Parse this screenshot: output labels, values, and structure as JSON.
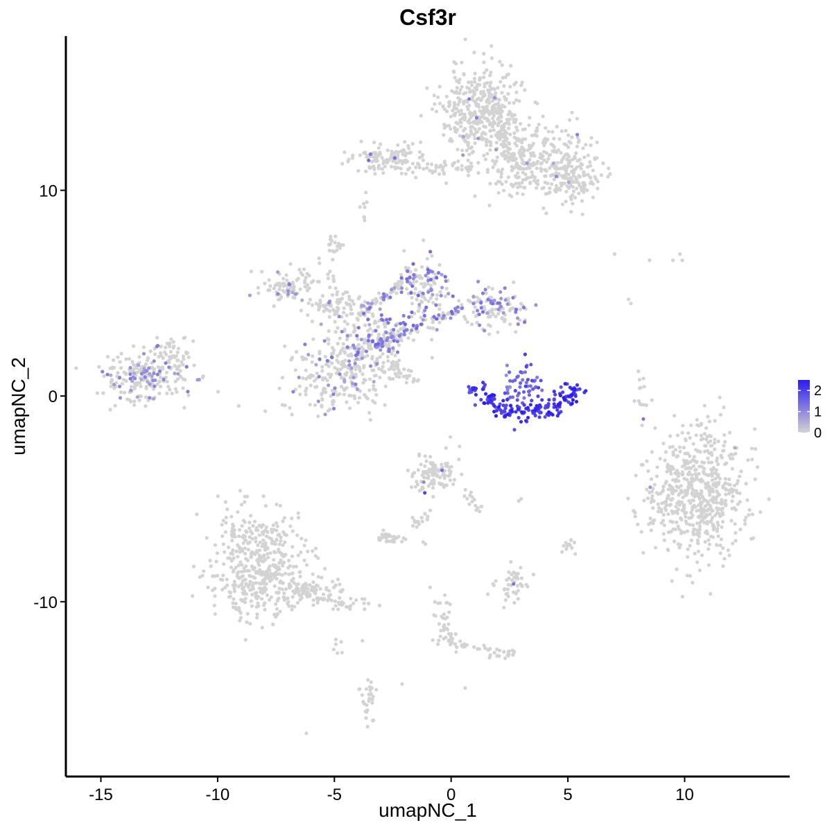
{
  "chart_data": {
    "type": "scatter",
    "title": "Csf3r",
    "xlabel": "umapNC_1",
    "ylabel": "umapNC_2",
    "xlim": [
      -16.5,
      14.5
    ],
    "ylim": [
      -18.5,
      17.5
    ],
    "xticks": [
      -15,
      -10,
      -5,
      0,
      5,
      10
    ],
    "xtick_labels": [
      "-15",
      "-10",
      "-5",
      "0",
      "5",
      "10"
    ],
    "yticks": [
      -10,
      0,
      10
    ],
    "ytick_labels": [
      "-10",
      "0",
      "10"
    ],
    "grid": false,
    "legend_position": "right",
    "color_scale": {
      "low": "#d3d3d3",
      "high": "#2b1bf0",
      "range": [
        0,
        2.5
      ],
      "ticks": [
        0,
        1,
        2
      ],
      "tick_labels": [
        "0",
        "1",
        "2"
      ]
    },
    "clusters": [
      {
        "cx": 1.4,
        "cy": 13.8,
        "sx": 0.9,
        "sy": 1.1,
        "n": 420,
        "expr_frac": 0.01,
        "expr": 0.9
      },
      {
        "cx": 3.5,
        "cy": 11.5,
        "sx": 1.2,
        "sy": 0.9,
        "n": 260,
        "expr_frac": 0.01,
        "expr": 0.8
      },
      {
        "cx": 5.2,
        "cy": 10.6,
        "sx": 0.6,
        "sy": 0.7,
        "n": 120,
        "expr_frac": 0.01,
        "expr": 0.8
      },
      {
        "cx": -2.8,
        "cy": 11.6,
        "sx": 0.8,
        "sy": 0.35,
        "n": 110,
        "expr_frac": 0.02,
        "expr": 1.2
      },
      {
        "cx": -0.5,
        "cy": 11.1,
        "sx": 1.2,
        "sy": 0.2,
        "n": 50,
        "expr_frac": 0.0,
        "expr": 0
      },
      {
        "cx": -4.6,
        "cy": 1.0,
        "sx": 1.3,
        "sy": 0.9,
        "n": 260,
        "expr_frac": 0.14,
        "expr": 0.9
      },
      {
        "cx": -3.0,
        "cy": 3.0,
        "sx": 0.9,
        "sy": 0.7,
        "n": 160,
        "expr_frac": 0.35,
        "expr": 1.0
      },
      {
        "cx": -1.1,
        "cy": 5.3,
        "sx": 0.5,
        "sy": 0.8,
        "n": 110,
        "expr_frac": 0.4,
        "expr": 1.1
      },
      {
        "cx": 1.8,
        "cy": 4.2,
        "sx": 0.7,
        "sy": 0.5,
        "n": 120,
        "expr_frac": 0.35,
        "expr": 1.0
      },
      {
        "cx": -6.8,
        "cy": 5.3,
        "sx": 0.6,
        "sy": 0.4,
        "n": 90,
        "expr_frac": 0.05,
        "expr": 0.9
      },
      {
        "cx": -4.8,
        "cy": 4.3,
        "sx": 0.8,
        "sy": 0.4,
        "n": 70,
        "expr_frac": 0.08,
        "expr": 0.9
      },
      {
        "cx": -5.0,
        "cy": 7.3,
        "sx": 0.2,
        "sy": 0.3,
        "n": 20,
        "expr_frac": 0.0,
        "expr": 0
      },
      {
        "cx": -13.2,
        "cy": 1.0,
        "sx": 0.9,
        "sy": 0.6,
        "n": 220,
        "expr_frac": 0.25,
        "expr": 0.9
      },
      {
        "cx": -11.8,
        "cy": 2.0,
        "sx": 0.4,
        "sy": 0.4,
        "n": 40,
        "expr_frac": 0.05,
        "expr": 0.8
      },
      {
        "cx": 10.7,
        "cy": -4.6,
        "sx": 1.0,
        "sy": 1.5,
        "n": 550,
        "expr_frac": 0.005,
        "expr": 0.8
      },
      {
        "cx": 9.0,
        "cy": -5.3,
        "sx": 0.6,
        "sy": 0.8,
        "n": 60,
        "expr_frac": 0.0,
        "expr": 0
      },
      {
        "cx": -8.3,
        "cy": -8.2,
        "sx": 1.0,
        "sy": 1.3,
        "n": 450,
        "expr_frac": 0.0,
        "expr": 0
      },
      {
        "cx": -6.3,
        "cy": -9.5,
        "sx": 0.8,
        "sy": 0.4,
        "n": 80,
        "expr_frac": 0.0,
        "expr": 0
      },
      {
        "cx": -4.4,
        "cy": -10.1,
        "sx": 0.5,
        "sy": 0.2,
        "n": 25,
        "expr_frac": 0.0,
        "expr": 0
      },
      {
        "cx": -0.7,
        "cy": -3.8,
        "sx": 0.45,
        "sy": 0.5,
        "n": 110,
        "expr_frac": 0.04,
        "expr": 1.4
      },
      {
        "cx": -2.6,
        "cy": -6.9,
        "sx": 0.3,
        "sy": 0.15,
        "n": 30,
        "expr_frac": 0.0,
        "expr": 0
      },
      {
        "cx": 2.7,
        "cy": -9.3,
        "sx": 0.4,
        "sy": 0.4,
        "n": 45,
        "expr_frac": 0.05,
        "expr": 1.0
      },
      {
        "cx": -3.6,
        "cy": -14.8,
        "sx": 0.2,
        "sy": 0.6,
        "n": 30,
        "expr_frac": 0.0,
        "expr": 0
      },
      {
        "cx": 2.3,
        "cy": -12.5,
        "sx": 0.3,
        "sy": 0.15,
        "n": 20,
        "expr_frac": 0.0,
        "expr": 0
      },
      {
        "cx": -0.4,
        "cy": -11.0,
        "sx": 0.2,
        "sy": 0.6,
        "n": 25,
        "expr_frac": 0.0,
        "expr": 0
      },
      {
        "cx": 5.0,
        "cy": -7.3,
        "sx": 0.15,
        "sy": 0.2,
        "n": 12,
        "expr_frac": 0.0,
        "expr": 0
      },
      {
        "cx": 8.1,
        "cy": 0.2,
        "sx": 0.15,
        "sy": 0.6,
        "n": 15,
        "expr_frac": 0.1,
        "expr": 1.0
      }
    ],
    "strands": [
      {
        "x0": -3.9,
        "y0": 4.0,
        "x1": -1.5,
        "y1": 6.0,
        "n": 60,
        "expr_frac": 0.4,
        "expr": 1.0
      },
      {
        "x0": -4.2,
        "y0": 2.0,
        "x1": 0.5,
        "y1": 4.3,
        "n": 90,
        "expr_frac": 0.45,
        "expr": 1.1
      },
      {
        "x0": -2.8,
        "y0": 1.6,
        "x1": -1.4,
        "y1": 0.6,
        "n": 30,
        "expr_frac": 0.0,
        "expr": 0
      },
      {
        "x0": -5.6,
        "y0": 7.0,
        "x1": -4.6,
        "y1": 4.2,
        "n": 20,
        "expr_frac": 0.0,
        "expr": 0
      },
      {
        "x0": 2.0,
        "y0": 13.0,
        "x1": 3.2,
        "y1": 10.2,
        "n": 40,
        "expr_frac": 0.0,
        "expr": 0
      },
      {
        "x0": -0.8,
        "y0": -5.5,
        "x1": -1.5,
        "y1": -6.3,
        "n": 15,
        "expr_frac": 0.0,
        "expr": 0
      },
      {
        "x0": 0.7,
        "y0": -4.6,
        "x1": 1.2,
        "y1": -5.7,
        "n": 15,
        "expr_frac": 0.0,
        "expr": 0
      },
      {
        "x0": -4.5,
        "y0": -9.2,
        "x1": -6.8,
        "y1": -9.6,
        "n": 25,
        "expr_frac": 0.0,
        "expr": 0
      },
      {
        "x0": -0.6,
        "y0": -10.2,
        "x1": 0.3,
        "y1": -12.3,
        "n": 20,
        "expr_frac": 0.0,
        "expr": 0
      },
      {
        "x0": 0.3,
        "y0": -12.0,
        "x1": 1.8,
        "y1": -12.4,
        "n": 15,
        "expr_frac": 0.0,
        "expr": 0
      },
      {
        "x0": -3.7,
        "y0": 9.7,
        "x1": -3.8,
        "y1": 8.7,
        "n": 8,
        "expr_frac": 0.0,
        "expr": 0
      },
      {
        "x0": -4.9,
        "y0": -11.7,
        "x1": -4.9,
        "y1": -12.9,
        "n": 6,
        "expr_frac": 0.0,
        "expr": 0
      }
    ],
    "hotspot_arc": {
      "cx": 3.2,
      "cy": 1.3,
      "radius": 2.25,
      "angle_start": 200,
      "angle_end": 340,
      "band": 0.25,
      "n": 170,
      "expr": 2.3,
      "inner": {
        "cx": 3.2,
        "cy": 0.5,
        "sx": 0.35,
        "sy": 0.6,
        "n": 45,
        "expr": 1.6
      },
      "tail": {
        "x0": 2.4,
        "y0": 1.4,
        "x1": 2.5,
        "y1": -0.2,
        "n": 12,
        "expr": 1.2
      }
    },
    "singletons": [
      [
        7.0,
        6.9
      ],
      [
        8.5,
        6.6
      ],
      [
        9.5,
        6.6
      ],
      [
        9.9,
        6.6
      ],
      [
        9.8,
        6.9
      ],
      [
        7.6,
        4.7
      ],
      [
        7.7,
        4.5
      ],
      [
        8.6,
        -0.2
      ],
      [
        3.0,
        -5.0
      ],
      [
        2.9,
        -5.1
      ],
      [
        -0.9,
        -9.3
      ],
      [
        -2.1,
        -14.0
      ],
      [
        0.6,
        -14.2
      ],
      [
        -6.2,
        -16.4
      ],
      [
        -3.8,
        -11.9
      ],
      [
        -1.2,
        -7.1
      ],
      [
        -1.1,
        -7.2
      ]
    ]
  }
}
